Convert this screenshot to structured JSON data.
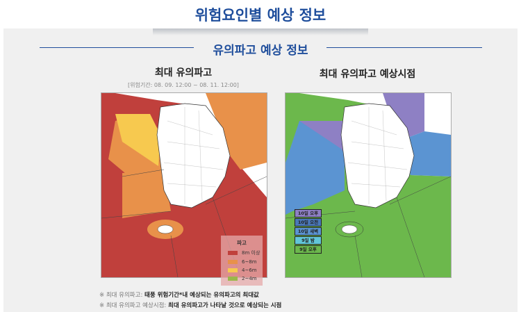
{
  "header": {
    "title": "위험요인별 예상 정보"
  },
  "section": {
    "title": "유의파고 예상 정보"
  },
  "left_map": {
    "title": "최대 유의파고",
    "period": "[위험기간: 08. 09. 12:00 ~ 08. 11. 12:00]",
    "legend": {
      "title": "파고",
      "items": [
        {
          "label": "8m 이상",
          "color": "#c0403c"
        },
        {
          "label": "6~8m",
          "color": "#e8914a"
        },
        {
          "label": "4~6m",
          "color": "#f7c94f"
        },
        {
          "label": "2~4m",
          "color": "#9ab84a"
        }
      ]
    }
  },
  "right_map": {
    "title": "최대 유의파고 예상시점",
    "legend": [
      {
        "label": "10일 오후",
        "color": "#8e80c4"
      },
      {
        "label": "10일 오전",
        "color": "#4a78b8"
      },
      {
        "label": "10일 새벽",
        "color": "#5b94d2"
      },
      {
        "label": "9일 밤",
        "color": "#62c6d8"
      },
      {
        "label": "9일 오후",
        "color": "#6cb84c"
      }
    ]
  },
  "notes": [
    {
      "prefix": "※ 최대 유의파고:",
      "text": "태풍 위험기간*내 예상되는 유의파고의 최대값"
    },
    {
      "prefix": "※ 최대 유의파고 예상시점:",
      "text": "최대 유의파고가 나타날 것으로 예상되는 시점"
    }
  ]
}
